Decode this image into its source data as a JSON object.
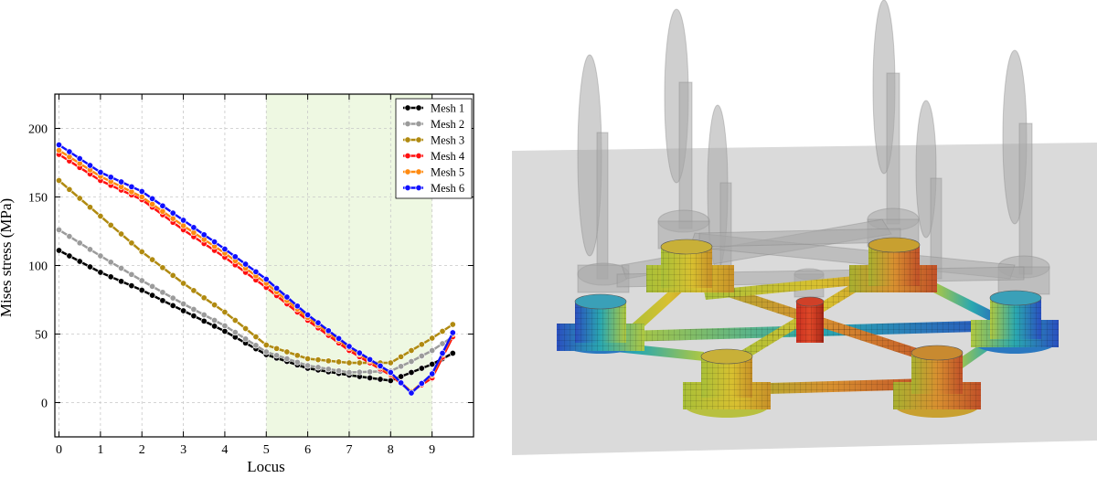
{
  "chart_data": {
    "type": "line",
    "xlabel": "Locus",
    "ylabel": "Mises stress (MPa)",
    "xlim": [
      -0.1,
      10.0
    ],
    "ylim": [
      -25,
      225
    ],
    "xticks": [
      0,
      1,
      2,
      3,
      4,
      5,
      6,
      7,
      8,
      9
    ],
    "yticks": [
      0,
      50,
      100,
      150,
      200
    ],
    "xtick_labels": [
      "0",
      "1",
      "2",
      "3",
      "4",
      "5",
      "6",
      "7",
      "8",
      "9"
    ],
    "ytick_labels": [
      "0",
      "50",
      "100",
      "150",
      "200"
    ],
    "grid": true,
    "legend_position": "top-right",
    "shaded_region": {
      "x": [
        5,
        9
      ],
      "color": "#eef8e2"
    },
    "x_anchors": [
      0,
      1,
      2,
      3,
      4,
      5,
      6,
      7,
      8,
      8.5,
      9,
      9.5
    ],
    "series": [
      {
        "name": "Mesh 1",
        "color": "#000000",
        "anchors": [
          111,
          95,
          82,
          67,
          52,
          35,
          25,
          20,
          16,
          22,
          28,
          36
        ]
      },
      {
        "name": "Mesh 2",
        "color": "#9b9b9b",
        "anchors": [
          126,
          107,
          89,
          72,
          56,
          37,
          27,
          22,
          23,
          30,
          38,
          48
        ]
      },
      {
        "name": "Mesh 3",
        "color": "#b08a10",
        "anchors": [
          162,
          136,
          110,
          87,
          66,
          42,
          32,
          29,
          29,
          38,
          47,
          57
        ]
      },
      {
        "name": "Mesh 4",
        "color": "#ff1010",
        "anchors": [
          181,
          162,
          148,
          126,
          106,
          84,
          60,
          38,
          20,
          8,
          18,
          48
        ]
      },
      {
        "name": "Mesh 5",
        "color": "#ff8a10",
        "anchors": [
          184,
          165,
          150,
          129,
          109,
          87,
          62,
          40,
          21,
          8,
          20,
          50
        ]
      },
      {
        "name": "Mesh 6",
        "color": "#1010ff",
        "anchors": [
          188,
          168,
          154,
          133,
          112,
          90,
          64,
          41,
          22,
          7,
          21,
          51
        ]
      }
    ]
  },
  "render": {
    "colors": {
      "background": "#d9d9d9",
      "ghost": "#a8a8a8",
      "beam": "#c9a830",
      "column_low": "#2f6fc8",
      "column_mid": "#c8c838",
      "column_high": "#d84030"
    }
  }
}
